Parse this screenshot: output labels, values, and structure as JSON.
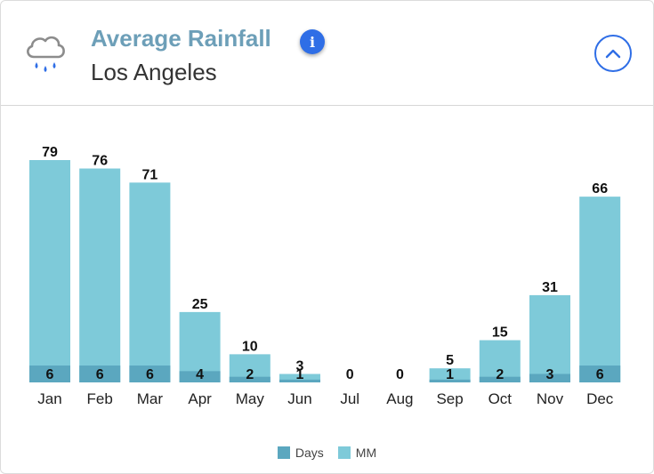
{
  "header": {
    "title": "Average Rainfall",
    "subtitle": "Los Angeles",
    "info_label": "i",
    "icon": "rain-cloud-icon",
    "collapse_icon": "chevron-up-icon"
  },
  "colors": {
    "title": "#6d9fb8",
    "accent": "#2f6ee6",
    "days_bar": "#5ba7bf",
    "mm_bar": "#7ecad9",
    "cloud": "#8c8c8c",
    "drop": "#2f6ee6"
  },
  "legend": [
    {
      "label": "Days",
      "color": "#5ba7bf"
    },
    {
      "label": "MM",
      "color": "#7ecad9"
    }
  ],
  "chart_data": {
    "type": "bar",
    "title": "Average Rainfall",
    "subtitle": "Los Angeles",
    "categories": [
      "Jan",
      "Feb",
      "Mar",
      "Apr",
      "May",
      "Jun",
      "Jul",
      "Aug",
      "Sep",
      "Oct",
      "Nov",
      "Dec"
    ],
    "series": [
      {
        "name": "MM",
        "values": [
          79,
          76,
          71,
          25,
          10,
          3,
          0,
          0,
          5,
          15,
          31,
          66
        ]
      },
      {
        "name": "Days",
        "values": [
          6,
          6,
          6,
          4,
          2,
          1,
          0,
          0,
          1,
          2,
          3,
          6
        ]
      }
    ],
    "overlapping": true,
    "ylim": [
      0,
      79
    ],
    "grid": false,
    "legend_position": "bottom-center",
    "xlabel": "",
    "ylabel": ""
  }
}
